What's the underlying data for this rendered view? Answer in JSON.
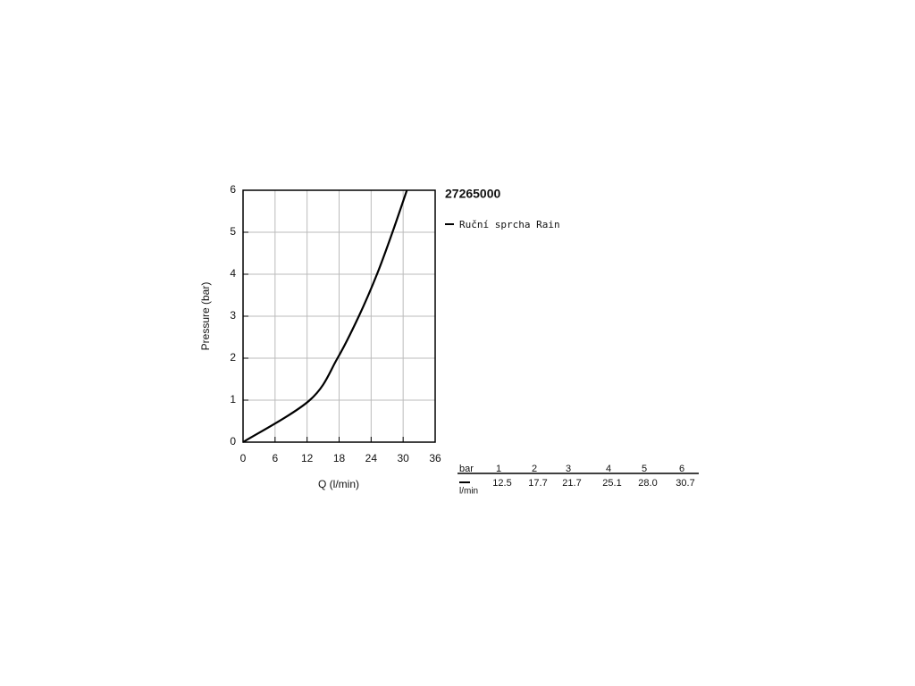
{
  "chart_data": {
    "type": "line",
    "title": "27265000",
    "xlabel": "Q (l/min)",
    "ylabel": "Pressure (bar)",
    "x": [
      0,
      12.5,
      17.7,
      21.7,
      25.1,
      28.0,
      30.7
    ],
    "series": [
      {
        "name": "Ruční sprcha Rain",
        "color": "#000000",
        "values": [
          0,
          1,
          2,
          3,
          4,
          5,
          6
        ]
      }
    ],
    "xlim": [
      0,
      36
    ],
    "xticks": [
      0,
      6,
      12,
      18,
      24,
      30,
      36
    ],
    "ylim": [
      0,
      6
    ],
    "yticks": [
      0,
      1,
      2,
      3,
      4,
      5,
      6
    ],
    "grid": true
  },
  "table": {
    "header_label": "bar",
    "row_label": "l/min",
    "pressures": [
      "1",
      "2",
      "3",
      "4",
      "5",
      "6"
    ],
    "flows": [
      "12.5",
      "17.7",
      "21.7",
      "25.1",
      "28.0",
      "30.7"
    ]
  }
}
